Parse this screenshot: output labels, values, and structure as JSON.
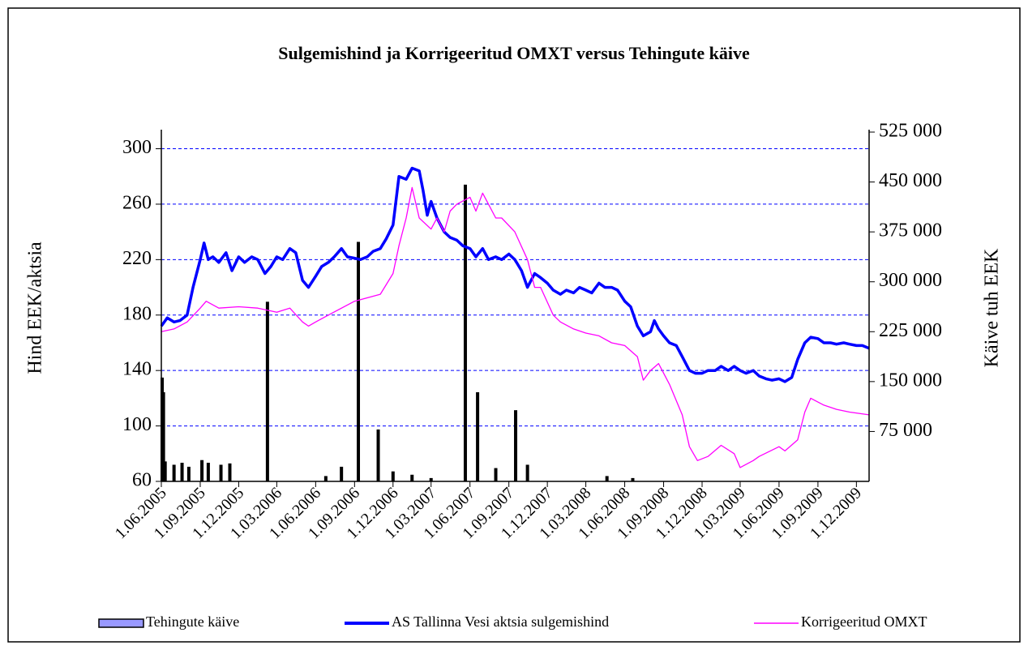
{
  "chart_data": {
    "type": "combo",
    "title": "Sulgemishind ja Korrigeeritud  OMXT versus Tehingute käive",
    "ylabel": "Hind EEK/aktsia",
    "y2label": "Käive tuh EEK",
    "xlim": [
      "2005-06-01",
      "2009-12-31"
    ],
    "xticks": [
      {
        "value": "2005-06-01",
        "label": "1.06.2005"
      },
      {
        "value": "2005-09-01",
        "label": "1.09.2005"
      },
      {
        "value": "2005-12-01",
        "label": "1.12.2005"
      },
      {
        "value": "2006-03-01",
        "label": "1.03.2006"
      },
      {
        "value": "2006-06-01",
        "label": "1.06.2006"
      },
      {
        "value": "2006-09-01",
        "label": "1.09.2006"
      },
      {
        "value": "2006-12-01",
        "label": "1.12.2006"
      },
      {
        "value": "2007-03-01",
        "label": "1.03.2007"
      },
      {
        "value": "2007-06-01",
        "label": "1.06.2007"
      },
      {
        "value": "2007-09-01",
        "label": "1.09.2007"
      },
      {
        "value": "2007-12-01",
        "label": "1.12.2007"
      },
      {
        "value": "2008-03-01",
        "label": "1.03.2008"
      },
      {
        "value": "2008-06-01",
        "label": "1.06.2008"
      },
      {
        "value": "2008-09-01",
        "label": "1.09.2008"
      },
      {
        "value": "2008-12-01",
        "label": "1.12.2008"
      },
      {
        "value": "2009-03-01",
        "label": "1.03.2009"
      },
      {
        "value": "2009-06-01",
        "label": "1.06.2009"
      },
      {
        "value": "2009-09-01",
        "label": "1.09.2009"
      },
      {
        "value": "2009-12-01",
        "label": "1.12.2009"
      }
    ],
    "ylim": [
      60,
      312
    ],
    "yticks": [
      60,
      100,
      140,
      180,
      220,
      260,
      300
    ],
    "y2lim": [
      0,
      525000
    ],
    "y2ticks": [
      {
        "value": 75000,
        "label": "75 000"
      },
      {
        "value": 150000,
        "label": "150 000"
      },
      {
        "value": 225000,
        "label": "225 000"
      },
      {
        "value": 300000,
        "label": "300 000"
      },
      {
        "value": 375000,
        "label": "375 000"
      },
      {
        "value": 450000,
        "label": "450 000"
      },
      {
        "value": 525000,
        "label": "525 000"
      }
    ],
    "grid": true,
    "legend": "bottom",
    "series": [
      {
        "name": "Tehingute käive",
        "type": "bar",
        "axis": "y2",
        "color": "#000000",
        "x": [
          "2005-06-03",
          "2005-06-06",
          "2005-06-10",
          "2005-07-01",
          "2005-07-20",
          "2005-08-05",
          "2005-09-05",
          "2005-09-20",
          "2005-10-20",
          "2005-11-10",
          "2006-02-07",
          "2006-06-25",
          "2006-08-01",
          "2006-09-10",
          "2006-10-27",
          "2006-12-01",
          "2007-01-15",
          "2007-03-01",
          "2007-05-21",
          "2007-06-19",
          "2007-08-01",
          "2007-09-17",
          "2007-10-15",
          "2008-04-20",
          "2008-06-20"
        ],
        "values": [
          156000,
          134000,
          30000,
          25000,
          28000,
          22000,
          32000,
          28000,
          25000,
          27000,
          270000,
          8000,
          22000,
          360000,
          78000,
          15000,
          10000,
          5000,
          446000,
          134000,
          20000,
          107000,
          25000,
          8000,
          5000
        ]
      },
      {
        "name": "AS Tallinna Vesi aktsia sulgemishind",
        "type": "line",
        "axis": "y",
        "color": "#0000ff",
        "x": [
          "2005-06-01",
          "2005-06-15",
          "2005-07-01",
          "2005-07-15",
          "2005-08-01",
          "2005-08-15",
          "2005-09-01",
          "2005-09-10",
          "2005-09-20",
          "2005-10-01",
          "2005-10-15",
          "2005-11-01",
          "2005-11-15",
          "2005-12-01",
          "2005-12-15",
          "2006-01-01",
          "2006-01-15",
          "2006-02-01",
          "2006-02-15",
          "2006-03-01",
          "2006-03-15",
          "2006-04-01",
          "2006-04-15",
          "2006-05-01",
          "2006-05-15",
          "2006-06-01",
          "2006-06-15",
          "2006-07-01",
          "2006-07-15",
          "2006-08-01",
          "2006-08-15",
          "2006-09-01",
          "2006-09-15",
          "2006-10-01",
          "2006-10-15",
          "2006-11-01",
          "2006-11-15",
          "2006-12-01",
          "2006-12-15",
          "2007-01-01",
          "2007-01-15",
          "2007-02-01",
          "2007-02-10",
          "2007-02-20",
          "2007-03-01",
          "2007-03-15",
          "2007-04-01",
          "2007-04-15",
          "2007-05-01",
          "2007-05-15",
          "2007-06-01",
          "2007-06-15",
          "2007-07-01",
          "2007-07-15",
          "2007-08-01",
          "2007-08-15",
          "2007-09-01",
          "2007-09-15",
          "2007-10-01",
          "2007-10-15",
          "2007-11-01",
          "2007-11-15",
          "2007-12-01",
          "2007-12-15",
          "2008-01-01",
          "2008-01-15",
          "2008-02-01",
          "2008-02-15",
          "2008-03-01",
          "2008-03-15",
          "2008-04-01",
          "2008-04-15",
          "2008-05-01",
          "2008-05-15",
          "2008-06-01",
          "2008-06-15",
          "2008-07-01",
          "2008-07-15",
          "2008-08-01",
          "2008-08-10",
          "2008-08-20",
          "2008-09-01",
          "2008-09-15",
          "2008-10-01",
          "2008-10-15",
          "2008-11-01",
          "2008-11-15",
          "2008-12-01",
          "2008-12-15",
          "2009-01-01",
          "2009-01-15",
          "2009-02-01",
          "2009-02-15",
          "2009-03-01",
          "2009-03-15",
          "2009-04-01",
          "2009-04-15",
          "2009-05-01",
          "2009-05-15",
          "2009-06-01",
          "2009-06-15",
          "2009-07-01",
          "2009-07-15",
          "2009-08-01",
          "2009-08-15",
          "2009-09-01",
          "2009-09-15",
          "2009-10-01",
          "2009-10-15",
          "2009-11-01",
          "2009-11-15",
          "2009-12-01",
          "2009-12-15",
          "2009-12-31"
        ],
        "values": [
          172,
          178,
          175,
          176,
          180,
          200,
          220,
          232,
          220,
          222,
          218,
          225,
          212,
          222,
          218,
          222,
          220,
          210,
          215,
          222,
          220,
          228,
          225,
          205,
          200,
          208,
          215,
          218,
          222,
          228,
          222,
          221,
          220,
          222,
          226,
          228,
          235,
          245,
          280,
          278,
          286,
          284,
          270,
          252,
          262,
          250,
          240,
          236,
          234,
          230,
          228,
          222,
          228,
          220,
          222,
          220,
          224,
          220,
          212,
          200,
          210,
          207,
          203,
          198,
          195,
          198,
          196,
          200,
          198,
          196,
          203,
          200,
          200,
          198,
          190,
          186,
          172,
          165,
          168,
          176,
          170,
          165,
          160,
          158,
          150,
          140,
          138,
          138,
          140,
          140,
          143,
          140,
          143,
          140,
          138,
          140,
          136,
          134,
          133,
          134,
          132,
          135,
          148,
          160,
          164,
          163,
          160,
          160,
          159,
          160,
          159,
          158,
          158,
          156
        ]
      },
      {
        "name": "Korrigeeritud OMXT",
        "type": "line",
        "axis": "y",
        "color": "#ff00ff",
        "x": [
          "2005-06-01",
          "2005-07-01",
          "2005-08-01",
          "2005-09-01",
          "2005-09-15",
          "2005-10-15",
          "2005-12-01",
          "2006-01-15",
          "2006-03-01",
          "2006-04-01",
          "2006-05-01",
          "2006-05-15",
          "2006-06-01",
          "2006-07-01",
          "2006-09-01",
          "2006-11-01",
          "2006-12-01",
          "2006-12-15",
          "2007-01-01",
          "2007-01-15",
          "2007-02-01",
          "2007-03-01",
          "2007-03-15",
          "2007-04-01",
          "2007-04-15",
          "2007-05-01",
          "2007-06-01",
          "2007-06-15",
          "2007-07-01",
          "2007-08-01",
          "2007-08-15",
          "2007-09-15",
          "2007-10-15",
          "2007-11-01",
          "2007-11-15",
          "2007-12-15",
          "2008-01-01",
          "2008-02-01",
          "2008-03-01",
          "2008-04-01",
          "2008-05-01",
          "2008-06-01",
          "2008-07-01",
          "2008-07-15",
          "2008-08-01",
          "2008-08-20",
          "2008-09-15",
          "2008-10-15",
          "2008-11-01",
          "2008-11-20",
          "2008-12-15",
          "2009-01-15",
          "2009-02-15",
          "2009-03-01",
          "2009-04-01",
          "2009-04-15",
          "2009-06-01",
          "2009-06-15",
          "2009-07-15",
          "2009-08-01",
          "2009-08-15",
          "2009-09-15",
          "2009-10-15",
          "2009-11-15",
          "2009-12-31"
        ],
        "values": [
          168,
          170,
          175,
          185,
          190,
          185,
          186,
          185,
          182,
          185,
          175,
          172,
          175,
          180,
          190,
          195,
          210,
          230,
          250,
          272,
          250,
          242,
          250,
          240,
          255,
          260,
          265,
          255,
          268,
          250,
          250,
          240,
          220,
          200,
          200,
          180,
          175,
          170,
          167,
          165,
          160,
          158,
          150,
          133,
          140,
          145,
          130,
          108,
          85,
          75,
          78,
          86,
          80,
          70,
          75,
          78,
          85,
          82,
          90,
          110,
          120,
          115,
          112,
          110,
          108
        ]
      }
    ]
  }
}
